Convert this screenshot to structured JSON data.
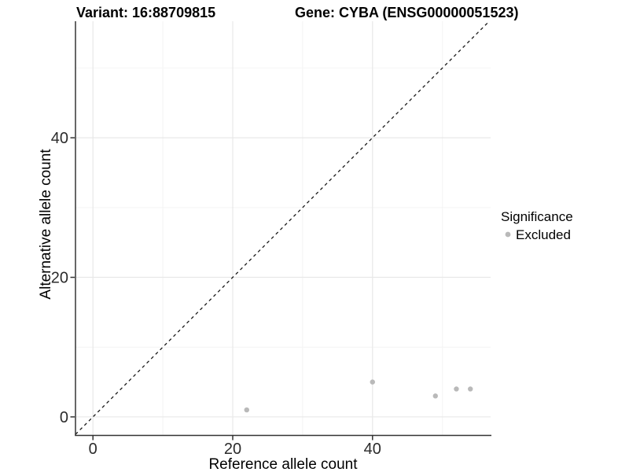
{
  "colors": {
    "background": "#ffffff",
    "grid_major": "#e8e8e8",
    "grid_minor": "#f4f4f4",
    "axis_line": "#333333",
    "tick_mark": "#333333",
    "tick_text": "#2b2b2b",
    "identity_line": "#1a1a1a",
    "point": "#b9b9b9"
  },
  "chart_data": {
    "type": "scatter",
    "title_left": "Variant: 16:88709815",
    "title_right": "Gene: CYBA (ENSG00000051523)",
    "xlabel": "Reference allele count",
    "ylabel": "Alternative allele count",
    "x_ticks": [
      0,
      20,
      40
    ],
    "x_minor_ticks": [
      10,
      30,
      50
    ],
    "y_ticks": [
      0,
      20,
      40
    ],
    "y_minor_ticks": [
      10,
      30,
      50
    ],
    "xlim": [
      -2.5,
      56.9
    ],
    "ylim": [
      -2.6,
      56.7
    ],
    "grid": "major+minor",
    "legend": {
      "title": "Significance",
      "position": "right",
      "entries": [
        {
          "label": "Excluded",
          "color": "#b9b9b9"
        }
      ]
    },
    "series": [
      {
        "name": "Excluded",
        "color": "#b9b9b9",
        "points": [
          [
            22,
            1
          ],
          [
            40,
            5
          ],
          [
            49,
            3
          ],
          [
            52,
            4
          ],
          [
            54,
            4
          ]
        ]
      }
    ],
    "reference_line": {
      "equation": "y = x",
      "style": "dashed",
      "color": "#1a1a1a"
    }
  }
}
